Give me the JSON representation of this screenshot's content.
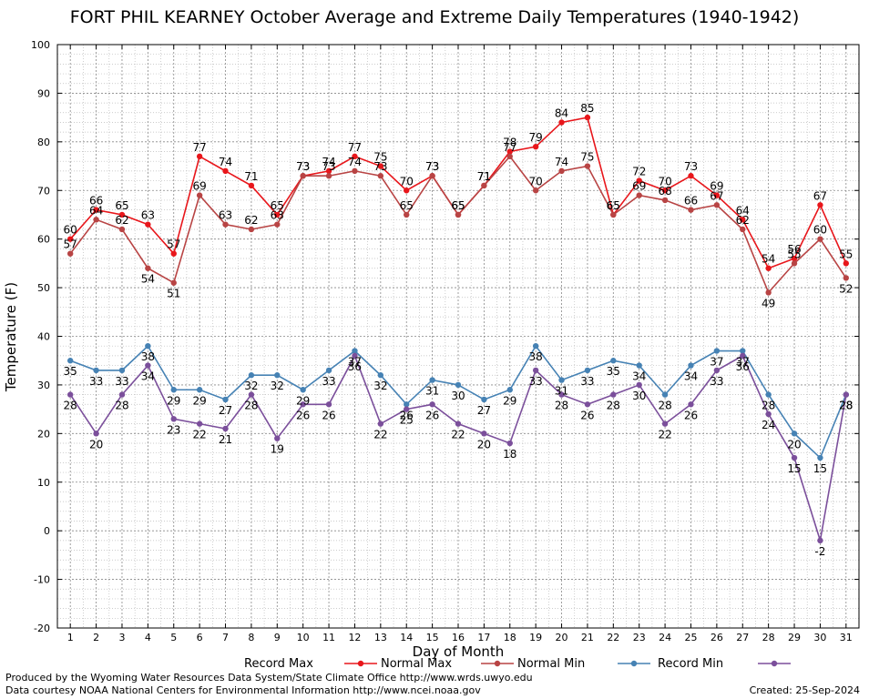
{
  "chart_data": {
    "type": "line",
    "title": "FORT PHIL KEARNEY October Average and Extreme Daily Temperatures (1940-1942)",
    "xlabel": "Day of Month",
    "ylabel": "Temperature (F)",
    "ylim": [
      -20,
      100
    ],
    "yticks": [
      -20,
      -10,
      0,
      10,
      20,
      30,
      40,
      50,
      60,
      70,
      80,
      90,
      100
    ],
    "x": [
      1,
      2,
      3,
      4,
      5,
      6,
      7,
      8,
      9,
      10,
      11,
      12,
      13,
      14,
      15,
      16,
      17,
      18,
      19,
      20,
      21,
      22,
      23,
      24,
      25,
      26,
      27,
      28,
      29,
      30,
      31
    ],
    "grid": true,
    "legend_position": "bottom",
    "series": [
      {
        "name": "Record Max",
        "color": "#e8161b",
        "values": [
          60,
          66,
          65,
          63,
          57,
          77,
          74,
          71,
          65,
          73,
          74,
          77,
          75,
          70,
          73,
          65,
          71,
          78,
          79,
          84,
          85,
          65,
          72,
          70,
          73,
          69,
          64,
          54,
          56,
          67,
          55
        ]
      },
      {
        "name": "Normal Max",
        "color": "#b84444",
        "values": [
          57,
          64,
          62,
          54,
          51,
          69,
          63,
          62,
          63,
          73,
          73,
          74,
          73,
          65,
          73,
          65,
          71,
          77,
          70,
          74,
          75,
          65,
          69,
          68,
          66,
          67,
          62,
          49,
          55,
          60,
          52
        ]
      },
      {
        "name": "Normal Min",
        "color": "#4682b4",
        "values": [
          35,
          33,
          33,
          38,
          29,
          29,
          27,
          32,
          32,
          29,
          33,
          37,
          32,
          26,
          31,
          30,
          27,
          29,
          38,
          31,
          33,
          35,
          34,
          28,
          34,
          37,
          37,
          28,
          20,
          15,
          28
        ]
      },
      {
        "name": "Record Min",
        "color": "#7b4f9b",
        "values": [
          28,
          20,
          28,
          34,
          23,
          22,
          21,
          28,
          19,
          26,
          26,
          36,
          22,
          25,
          26,
          22,
          20,
          18,
          33,
          28,
          26,
          28,
          30,
          22,
          26,
          33,
          36,
          24,
          15,
          -2,
          28
        ]
      }
    ]
  },
  "footer": {
    "produced_by": "Produced by the Wyoming Water Resources Data System/State Climate Office http://www.wrds.uwyo.edu",
    "data_courtesy": "Data courtesy NOAA National Centers for Environmental Information http://www.ncei.noaa.gov",
    "created": "Created:  25-Sep-2024"
  }
}
